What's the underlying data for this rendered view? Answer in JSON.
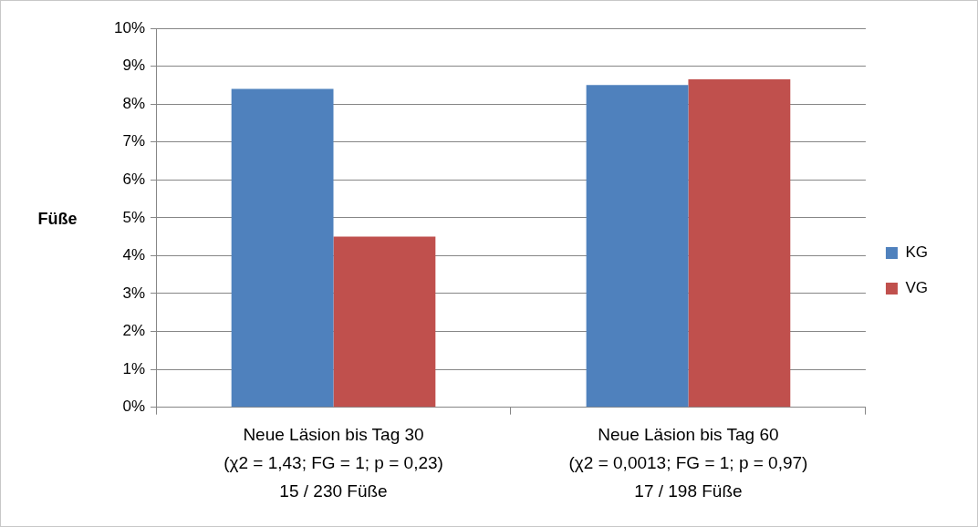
{
  "chart_data": {
    "type": "bar",
    "categories": [
      "Neue Läsion bis Tag 30\n(χ2 = 1,43; FG = 1; p = 0,23)\n15 / 230 Füße",
      "Neue Läsion bis Tag 60\n(χ2 = 0,0013; FG = 1; p = 0,97)\n17 / 198 Füße"
    ],
    "series": [
      {
        "name": "KG",
        "color": "#4f81bd",
        "values": [
          8.4,
          8.5
        ]
      },
      {
        "name": "VG",
        "color": "#c0504d",
        "values": [
          4.5,
          8.65
        ]
      }
    ],
    "ylabel": "Füße",
    "ylim": [
      0,
      10
    ],
    "yticks": [
      {
        "value": 0,
        "label": "0%"
      },
      {
        "value": 1,
        "label": "1%"
      },
      {
        "value": 2,
        "label": "2%"
      },
      {
        "value": 3,
        "label": "3%"
      },
      {
        "value": 4,
        "label": "4%"
      },
      {
        "value": 5,
        "label": "5%"
      },
      {
        "value": 6,
        "label": "6%"
      },
      {
        "value": 7,
        "label": "7%"
      },
      {
        "value": 8,
        "label": "8%"
      },
      {
        "value": 9,
        "label": "9%"
      },
      {
        "value": 10,
        "label": "10%"
      }
    ],
    "grid": "y",
    "legend": "right"
  }
}
